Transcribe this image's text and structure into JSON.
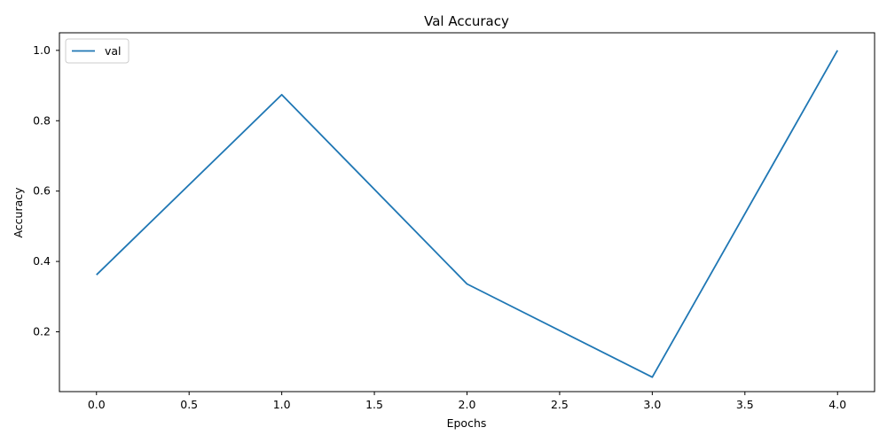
{
  "chart_data": {
    "type": "line",
    "title": "Val Accuracy",
    "xlabel": "Epochs",
    "ylabel": "Accuracy",
    "xlim": [
      -0.2,
      4.2
    ],
    "ylim": [
      0.03,
      1.05
    ],
    "xticks": [
      "0.0",
      "0.5",
      "1.0",
      "1.5",
      "2.0",
      "2.5",
      "3.0",
      "3.5",
      "4.0"
    ],
    "yticks": [
      "0.2",
      "0.4",
      "0.6",
      "0.8",
      "1.0"
    ],
    "grid": false,
    "legend_position": "top-left",
    "series": [
      {
        "name": "val",
        "color": "#1f77b4",
        "x": [
          0,
          1,
          2,
          3,
          4
        ],
        "y": [
          0.362,
          0.874,
          0.336,
          0.071,
          1.0
        ]
      }
    ]
  }
}
